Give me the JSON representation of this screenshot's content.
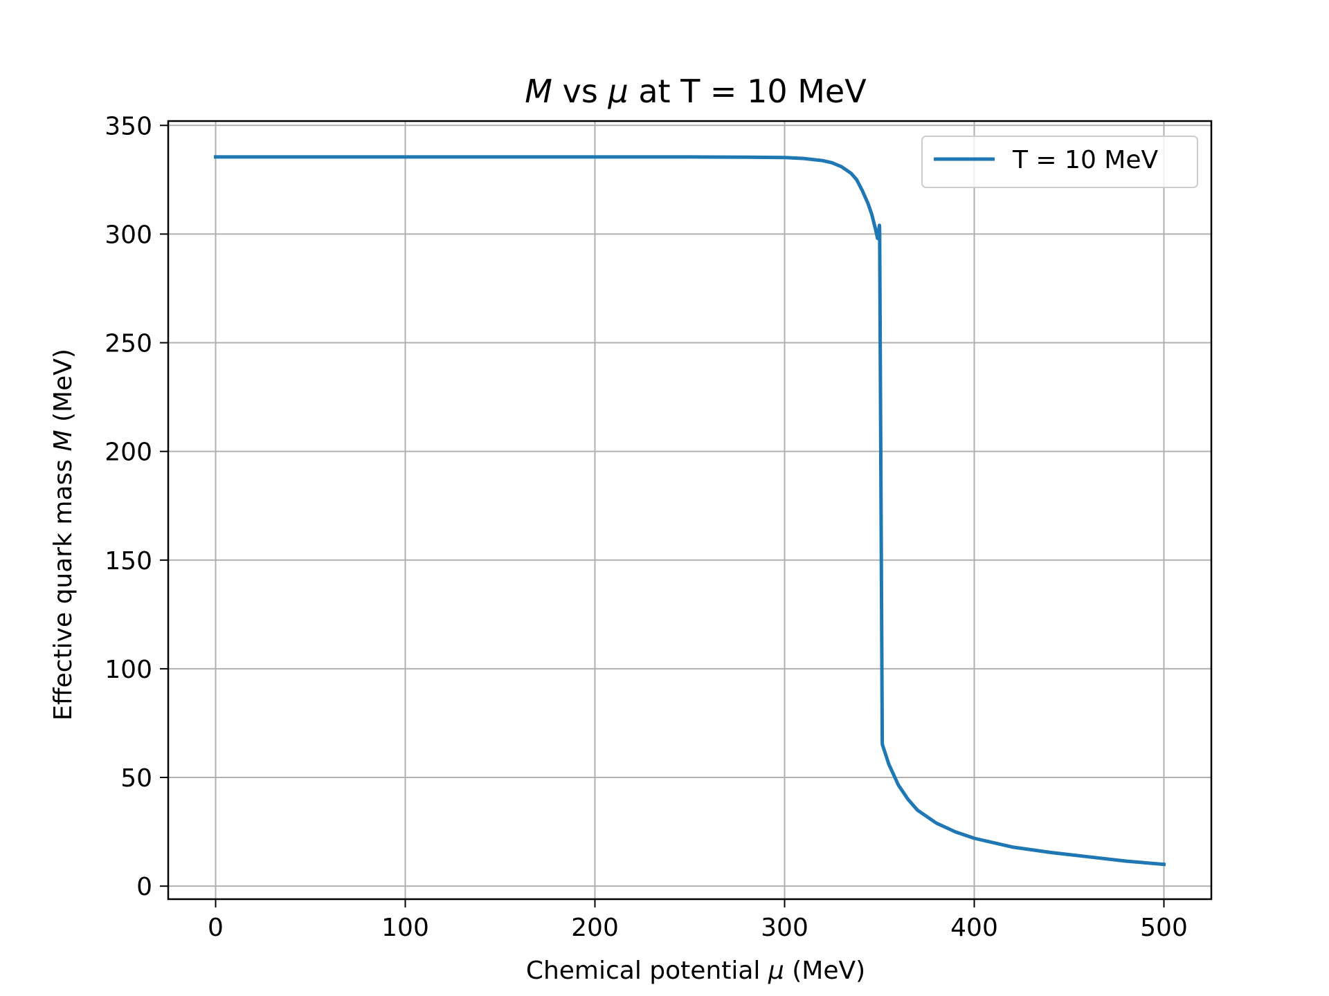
{
  "chart_data": {
    "type": "line",
    "title": {
      "var": "M",
      "middle": " vs ",
      "var2": "μ",
      "rest": " at T = 10 MeV"
    },
    "xlabel": {
      "pre": "Chemical potential ",
      "var": "μ",
      "post": " (MeV)"
    },
    "ylabel": {
      "pre": "Effective quark mass ",
      "var": "M",
      "post": " (MeV)"
    },
    "xlim": [
      -25,
      525
    ],
    "ylim": [
      -6,
      352
    ],
    "xticks": [
      0,
      100,
      200,
      300,
      400,
      500
    ],
    "yticks": [
      0,
      50,
      100,
      150,
      200,
      250,
      300,
      350
    ],
    "grid": true,
    "legend": {
      "position": "top-right"
    },
    "series": [
      {
        "name": "T = 10 MeV",
        "color": "#1f77b4",
        "x": [
          0,
          50,
          100,
          150,
          200,
          250,
          280,
          300,
          310,
          320,
          325,
          330,
          335,
          338,
          341,
          344,
          346,
          348,
          349,
          350,
          350.1,
          351.5,
          351.6,
          355,
          360,
          365,
          370,
          380,
          390,
          400,
          420,
          440,
          460,
          480,
          500
        ],
        "y": [
          335.5,
          335.5,
          335.5,
          335.5,
          335.5,
          335.5,
          335.4,
          335.2,
          334.8,
          333.8,
          332.8,
          331,
          328,
          325,
          320,
          314,
          309,
          302,
          298,
          304,
          302,
          66,
          65,
          56,
          46.5,
          40,
          35,
          29,
          25,
          22,
          18,
          15.5,
          13.5,
          11.5,
          10
        ]
      }
    ]
  }
}
